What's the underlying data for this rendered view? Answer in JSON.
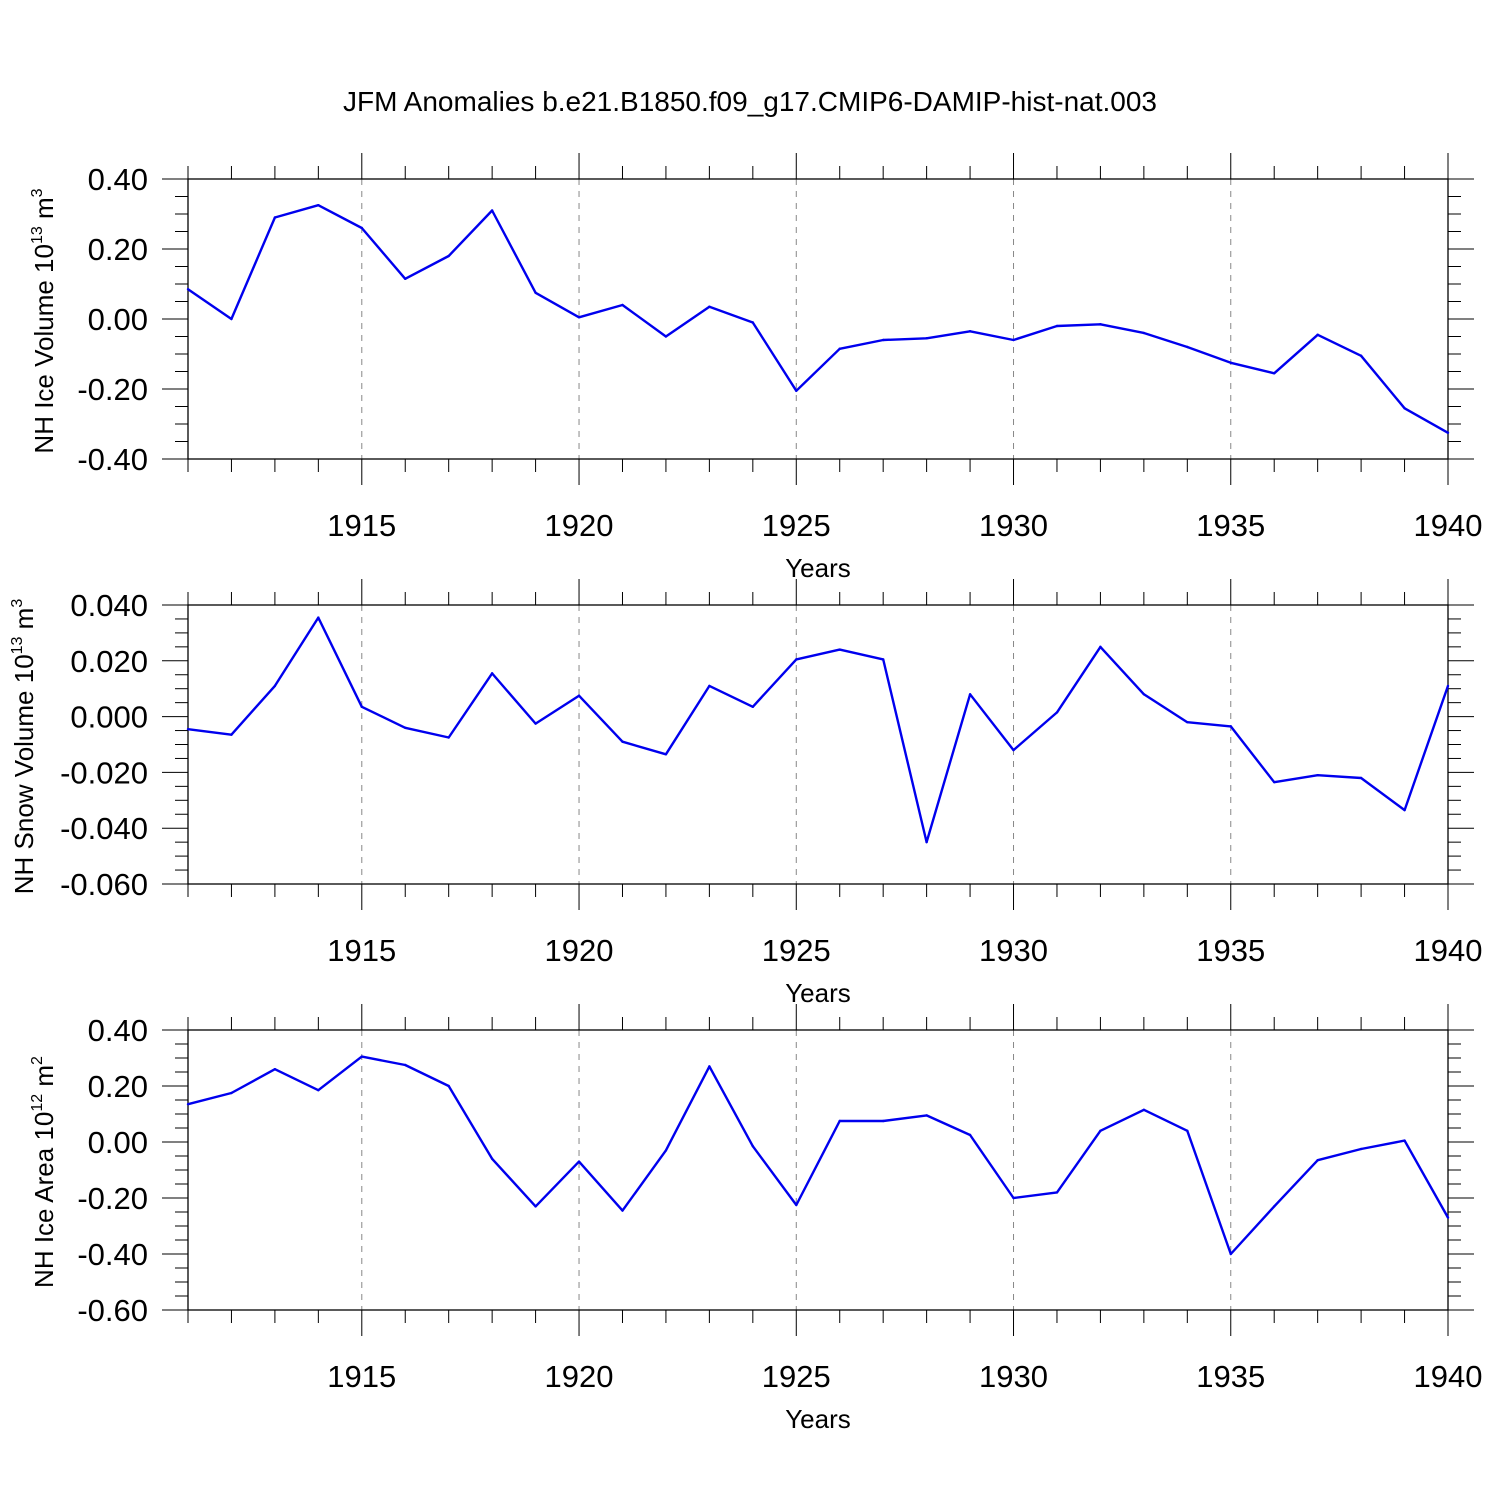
{
  "title": "JFM Anomalies b.e21.B1850.f09_g17.CMIP6-DAMIP-hist-nat.003",
  "colors": {
    "line": "#0000ee",
    "axis": "#000000",
    "grid": "#888888"
  },
  "chart_data": [
    {
      "type": "line",
      "title": "",
      "xlabel": "Years",
      "ylabel": "NH Ice Volume 10",
      "ylabel_sup": "13",
      "ylabel_unit": "m",
      "ylabel_unit_sup": "3",
      "xlim": [
        1911,
        1940
      ],
      "ylim": [
        -0.4,
        0.4
      ],
      "yticks": [
        -0.4,
        -0.2,
        0.0,
        0.2,
        0.4
      ],
      "ytick_labels": [
        "-0.40",
        "-0.20",
        "0.00",
        "0.20",
        "0.40"
      ],
      "xticks": [
        1915,
        1920,
        1925,
        1930,
        1935,
        1940
      ],
      "xtick_labels": [
        "1915",
        "1920",
        "1925",
        "1930",
        "1935",
        "1940"
      ],
      "grid": "vertical dashed at major x ticks",
      "x": [
        1911,
        1912,
        1913,
        1914,
        1915,
        1916,
        1917,
        1918,
        1919,
        1920,
        1921,
        1922,
        1923,
        1924,
        1925,
        1926,
        1927,
        1928,
        1929,
        1930,
        1931,
        1932,
        1933,
        1934,
        1935,
        1936,
        1937,
        1938,
        1939,
        1940
      ],
      "values": [
        0.085,
        0.0,
        0.29,
        0.325,
        0.26,
        0.115,
        0.18,
        0.31,
        0.075,
        0.005,
        0.04,
        -0.05,
        0.035,
        -0.01,
        -0.205,
        -0.085,
        -0.06,
        -0.055,
        -0.035,
        -0.06,
        -0.02,
        -0.015,
        -0.04,
        -0.08,
        -0.125,
        -0.155,
        -0.045,
        -0.105,
        -0.255,
        -0.325
      ]
    },
    {
      "type": "line",
      "title": "",
      "xlabel": "Years",
      "ylabel": "NH Snow Volume 10",
      "ylabel_sup": "13",
      "ylabel_unit": "m",
      "ylabel_unit_sup": "3",
      "xlim": [
        1911,
        1940
      ],
      "ylim": [
        -0.06,
        0.04
      ],
      "yticks": [
        -0.06,
        -0.04,
        -0.02,
        0.0,
        0.02,
        0.04
      ],
      "ytick_labels": [
        "-0.060",
        "-0.040",
        "-0.020",
        "0.000",
        "0.020",
        "0.040"
      ],
      "xticks": [
        1915,
        1920,
        1925,
        1930,
        1935,
        1940
      ],
      "xtick_labels": [
        "1915",
        "1920",
        "1925",
        "1930",
        "1935",
        "1940"
      ],
      "grid": "vertical dashed at major x ticks",
      "x": [
        1911,
        1912,
        1913,
        1914,
        1915,
        1916,
        1917,
        1918,
        1919,
        1920,
        1921,
        1922,
        1923,
        1924,
        1925,
        1926,
        1927,
        1928,
        1929,
        1930,
        1931,
        1932,
        1933,
        1934,
        1935,
        1936,
        1937,
        1938,
        1939,
        1940
      ],
      "values": [
        -0.0045,
        -0.0065,
        0.011,
        0.0355,
        0.0035,
        -0.004,
        -0.0075,
        0.0155,
        -0.0025,
        0.0075,
        -0.009,
        -0.0135,
        0.011,
        0.0035,
        0.0205,
        0.024,
        0.0205,
        -0.045,
        0.008,
        -0.012,
        0.0015,
        0.025,
        0.008,
        -0.002,
        -0.0035,
        -0.0235,
        -0.021,
        -0.022,
        -0.0335,
        0.011
      ]
    },
    {
      "type": "line",
      "title": "",
      "xlabel": "Years",
      "ylabel": "NH Ice Area 10",
      "ylabel_sup": "12",
      "ylabel_unit": "m",
      "ylabel_unit_sup": "2",
      "xlim": [
        1911,
        1940
      ],
      "ylim": [
        -0.6,
        0.4
      ],
      "yticks": [
        -0.6,
        -0.4,
        -0.2,
        0.0,
        0.2,
        0.4
      ],
      "ytick_labels": [
        "-0.60",
        "-0.40",
        "-0.20",
        "0.00",
        "0.20",
        "0.40"
      ],
      "xticks": [
        1915,
        1920,
        1925,
        1930,
        1935,
        1940
      ],
      "xtick_labels": [
        "1915",
        "1920",
        "1925",
        "1930",
        "1935",
        "1940"
      ],
      "grid": "vertical dashed at major x ticks",
      "x": [
        1911,
        1912,
        1913,
        1914,
        1915,
        1916,
        1917,
        1918,
        1919,
        1920,
        1921,
        1922,
        1923,
        1924,
        1925,
        1926,
        1927,
        1928,
        1929,
        1930,
        1931,
        1932,
        1933,
        1934,
        1935,
        1936,
        1937,
        1938,
        1939,
        1940
      ],
      "values": [
        0.135,
        0.175,
        0.26,
        0.185,
        0.305,
        0.275,
        0.2,
        -0.06,
        -0.23,
        -0.07,
        -0.245,
        -0.03,
        0.27,
        -0.015,
        -0.225,
        0.075,
        0.075,
        0.095,
        0.025,
        -0.2,
        -0.18,
        0.04,
        0.115,
        0.04,
        -0.4,
        -0.23,
        -0.065,
        -0.025,
        0.005,
        -0.27
      ]
    }
  ]
}
